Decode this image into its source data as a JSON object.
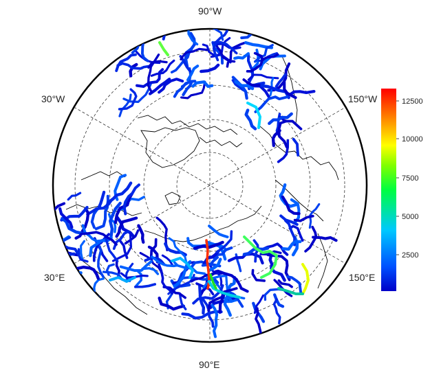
{
  "map": {
    "projection": "north polar stereographic",
    "longitude_labels": {
      "top": "90°W",
      "left": "30°W",
      "right": "150°W",
      "bottom_left": "30°E",
      "bottom_right": "150°E",
      "bottom": "90°E"
    },
    "graticule": "dashed",
    "river_network": "colored by value"
  },
  "colorbar": {
    "ticks": [
      "12500",
      "10000",
      "7500",
      "5000",
      "2500"
    ],
    "colors": [
      "#0000c8",
      "#0050ff",
      "#00c8ff",
      "#00ff80",
      "#80ff00",
      "#ffff00",
      "#ff8000",
      "#ff0000"
    ]
  }
}
